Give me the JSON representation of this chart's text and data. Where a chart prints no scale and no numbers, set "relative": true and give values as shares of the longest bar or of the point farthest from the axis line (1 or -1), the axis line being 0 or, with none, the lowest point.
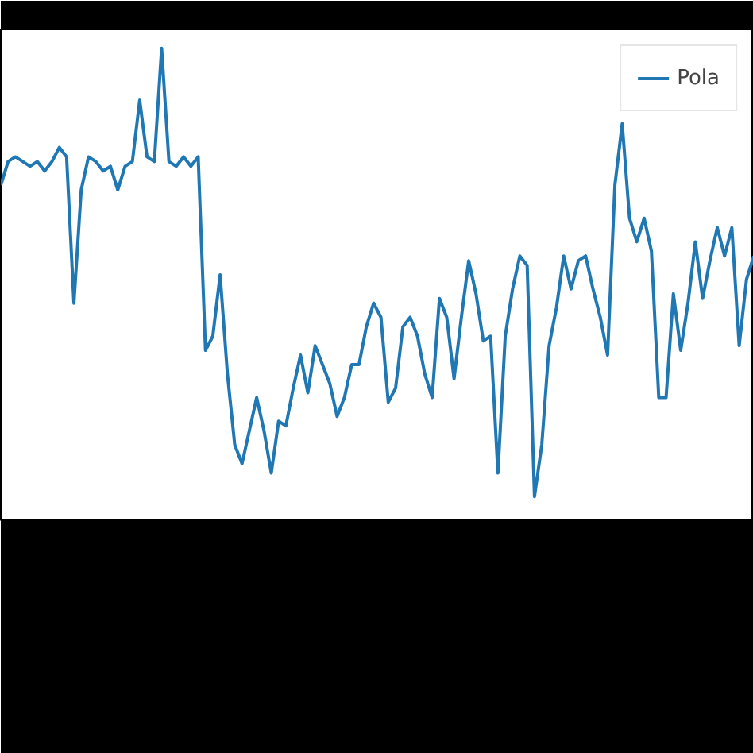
{
  "chart_data": {
    "type": "line",
    "relative": true,
    "legend": "top right",
    "grid": false,
    "categories": [
      null,
      null,
      null,
      null,
      null,
      null,
      null,
      null,
      null,
      null,
      null,
      null,
      null,
      null,
      null,
      null,
      null,
      null,
      null,
      null,
      null,
      null,
      null,
      null,
      null,
      null,
      null,
      null,
      null,
      null,
      null,
      null,
      null,
      null,
      null,
      null,
      null,
      null,
      null,
      null,
      null,
      null,
      null,
      null,
      null,
      null,
      null,
      null,
      null,
      null,
      null,
      null,
      null,
      null,
      null,
      null,
      null,
      null,
      null,
      null,
      null,
      null,
      null,
      null,
      null,
      null,
      null,
      null,
      null,
      null,
      null,
      null,
      null,
      null,
      null,
      null,
      null,
      null,
      null,
      null,
      null,
      null,
      null,
      null,
      null,
      null,
      null,
      null,
      null,
      null,
      null,
      null,
      null,
      null,
      null,
      null,
      null,
      null,
      null,
      null,
      null,
      null,
      null,
      null
    ],
    "series": [
      {
        "name": "Pola",
        "color": "#1f77b4",
        "values": [
          0.71,
          0.76,
          0.77,
          0.76,
          0.75,
          0.76,
          0.74,
          0.76,
          0.79,
          0.77,
          0.46,
          0.7,
          0.77,
          0.76,
          0.74,
          0.75,
          0.7,
          0.75,
          0.76,
          0.89,
          0.77,
          0.76,
          1.0,
          0.76,
          0.75,
          0.77,
          0.75,
          0.77,
          0.36,
          0.39,
          0.52,
          0.31,
          0.16,
          0.12,
          0.19,
          0.26,
          0.19,
          0.1,
          0.21,
          0.2,
          0.28,
          0.35,
          0.27,
          0.37,
          0.33,
          0.29,
          0.22,
          0.26,
          0.33,
          0.33,
          0.41,
          0.46,
          0.43,
          0.25,
          0.28,
          0.41,
          0.43,
          0.39,
          0.31,
          0.26,
          0.47,
          0.43,
          0.3,
          0.43,
          0.55,
          0.48,
          0.38,
          0.39,
          0.1,
          0.39,
          0.49,
          0.56,
          0.54,
          0.05,
          0.16,
          0.37,
          0.45,
          0.56,
          0.49,
          0.55,
          0.56,
          0.49,
          0.43,
          0.35,
          0.71,
          0.84,
          0.64,
          0.59,
          0.64,
          0.57,
          0.26,
          0.26,
          0.48,
          0.36,
          0.46,
          0.59,
          0.47,
          0.55,
          0.62,
          0.56,
          0.62,
          0.37,
          0.51,
          0.56
        ]
      }
    ]
  }
}
